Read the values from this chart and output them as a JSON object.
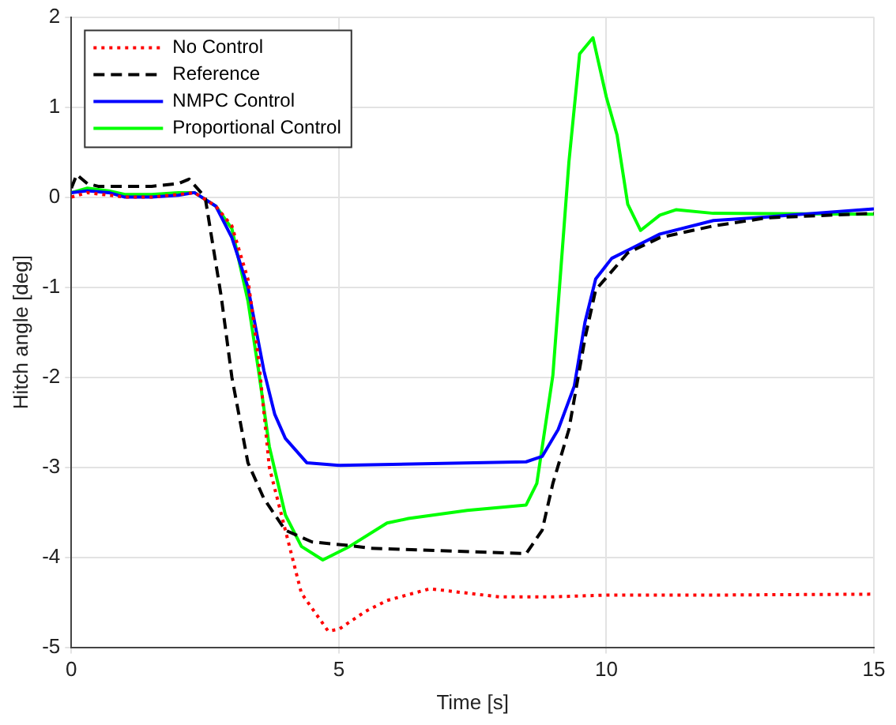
{
  "chart_data": {
    "type": "line",
    "xlabel": "Time [s]",
    "ylabel": "Hitch angle [deg]",
    "xlim": [
      0,
      15
    ],
    "ylim": [
      -5,
      2
    ],
    "xticks": [
      0,
      5,
      10,
      15
    ],
    "yticks": [
      -5,
      -4,
      -3,
      -2,
      -1,
      0,
      1,
      2
    ],
    "grid": true,
    "legend": "top left",
    "marker": "none",
    "series": [
      {
        "name": "No Control",
        "color": "#ff0000",
        "line_style": "dotted",
        "x": [
          0,
          0.3,
          1,
          1.5,
          2,
          2.3,
          2.7,
          3,
          3.3,
          3.5,
          3.7,
          4,
          4.3,
          4.8,
          5,
          5.5,
          5.9,
          6.7,
          8,
          9,
          10,
          12,
          15
        ],
        "values": [
          0,
          0.05,
          0,
          0,
          0.03,
          0.05,
          -0.1,
          -0.32,
          -0.91,
          -1.8,
          -3,
          -3.7,
          -4.4,
          -4.82,
          -4.8,
          -4.6,
          -4.48,
          -4.35,
          -4.44,
          -4.44,
          -4.42,
          -4.42,
          -4.41
        ]
      },
      {
        "name": "Reference",
        "color": "#000000",
        "line_style": "dashed",
        "x": [
          0,
          0.1,
          0.3,
          0.5,
          1,
          1.5,
          2,
          2.2,
          2.5,
          2.8,
          3,
          3.3,
          3.6,
          4,
          4.5,
          5.2,
          5.6,
          8.5,
          8.8,
          9,
          9.3,
          9.6,
          9.8,
          10.4,
          11,
          12,
          13,
          15
        ],
        "values": [
          0.1,
          0.25,
          0.15,
          0.12,
          0.12,
          0.12,
          0.15,
          0.2,
          0,
          -1.1,
          -2,
          -2.95,
          -3.35,
          -3.7,
          -3.83,
          -3.87,
          -3.9,
          -3.96,
          -3.7,
          -3.18,
          -2.58,
          -1.57,
          -1.03,
          -0.62,
          -0.45,
          -0.32,
          -0.23,
          -0.18
        ]
      },
      {
        "name": "NMPC Control",
        "color": "#0000ff",
        "line_style": "solid",
        "x": [
          0,
          0.3,
          0.7,
          1,
          1.5,
          2,
          2.3,
          2.7,
          3,
          3.3,
          3.6,
          3.8,
          4,
          4.4,
          5,
          8.5,
          8.8,
          9.1,
          9.4,
          9.6,
          9.8,
          10.1,
          10.5,
          11,
          12,
          13,
          15
        ],
        "values": [
          0.05,
          0.07,
          0.05,
          0,
          0,
          0.02,
          0.05,
          -0.1,
          -0.45,
          -1,
          -1.93,
          -2.41,
          -2.68,
          -2.95,
          -2.98,
          -2.94,
          -2.88,
          -2.58,
          -2.1,
          -1.39,
          -0.91,
          -0.68,
          -0.56,
          -0.41,
          -0.26,
          -0.22,
          -0.13
        ]
      },
      {
        "name": "Proportional Control",
        "color": "#00ff00",
        "line_style": "solid",
        "x": [
          0,
          0.3,
          0.7,
          1,
          1.5,
          2,
          2.3,
          2.7,
          3,
          3.3,
          3.5,
          3.7,
          4,
          4.3,
          4.7,
          5.2,
          5.9,
          6.3,
          7.4,
          8.5,
          8.7,
          9,
          9.3,
          9.5,
          9.75,
          10,
          10.2,
          10.4,
          10.64,
          11,
          11.3,
          12,
          15
        ],
        "values": [
          0.05,
          0.1,
          0.07,
          0.03,
          0.03,
          0.05,
          0.05,
          -0.1,
          -0.35,
          -1.15,
          -1.93,
          -2.77,
          -3.53,
          -3.88,
          -4.03,
          -3.88,
          -3.62,
          -3.57,
          -3.48,
          -3.42,
          -3.18,
          -1.98,
          0.39,
          1.59,
          1.77,
          1.11,
          0.69,
          -0.08,
          -0.37,
          -0.2,
          -0.14,
          -0.18,
          -0.19
        ]
      }
    ]
  }
}
